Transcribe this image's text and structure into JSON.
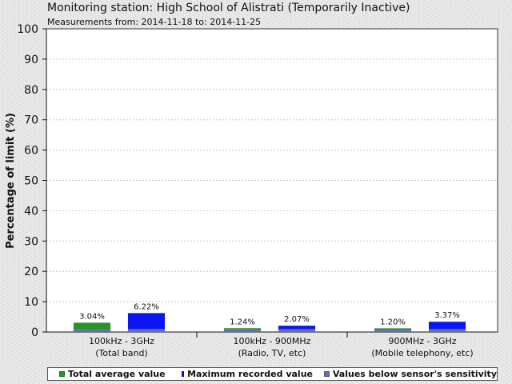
{
  "header": {
    "title": "Monitoring station: High School of Alistrati (Temporarily Inactive)",
    "subtitle": "Measurements from: 2014-11-18 to: 2014-11-25"
  },
  "legend": {
    "items": [
      {
        "label": "Total average value",
        "color": "#239623"
      },
      {
        "label": "Maximum recorded value",
        "color": "#0b16f3"
      },
      {
        "label": "Values below sensor's sensitivity",
        "color": "#6670a8"
      }
    ]
  },
  "chart_data": {
    "type": "bar",
    "title": "Monitoring station: High School of Alistrati (Temporarily Inactive)",
    "subtitle": "Measurements from: 2014-11-18 to: 2014-11-25",
    "xlabel": "",
    "ylabel": "Percentage of limit (%)",
    "ylim": [
      0,
      100
    ],
    "yticks": [
      0,
      10,
      20,
      30,
      40,
      50,
      60,
      70,
      80,
      90,
      100
    ],
    "grid": "horizontal dashed",
    "legend_position": "bottom",
    "categories": [
      {
        "line1": "100kHz - 3GHz",
        "line2": "(Total band)"
      },
      {
        "line1": "100kHz - 900MHz",
        "line2": "(Radio, TV, etc)"
      },
      {
        "line1": "900MHz - 3GHz",
        "line2": "(Mobile telephony, etc)"
      }
    ],
    "series": [
      {
        "name": "Total average value",
        "color": "#239623",
        "values": [
          3.04,
          1.24,
          1.2
        ],
        "labels": [
          "3.04%",
          "1.24%",
          "1.20%"
        ]
      },
      {
        "name": "Maximum recorded value",
        "color": "#0b16f3",
        "values": [
          6.22,
          2.07,
          3.37
        ],
        "labels": [
          "6.22%",
          "2.07%",
          "3.37%"
        ]
      }
    ],
    "sensor_sensitivity_values": [
      1,
      1,
      1
    ],
    "sensor_sensitivity_color": "#6670a8"
  }
}
